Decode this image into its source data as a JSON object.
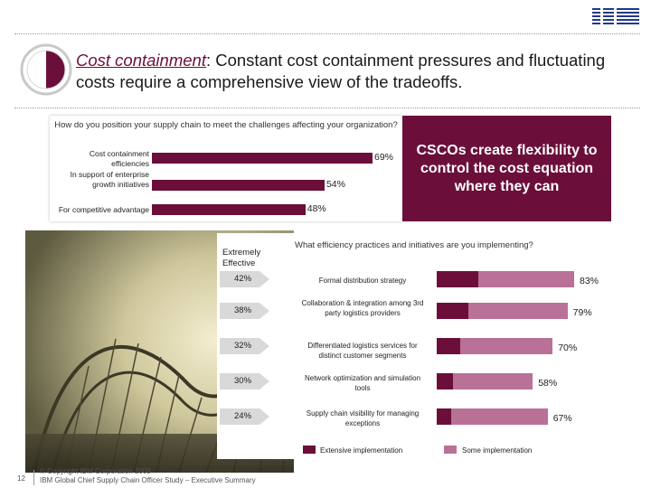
{
  "header": {
    "logo_text": "IBM",
    "title_lead": "Cost containment",
    "title_rest": ":  Constant cost containment pressures and fluctuating costs require a comprehensive view of the tradeoffs."
  },
  "callout": {
    "text": "CSCOs create flexibility to control the cost equation where they can"
  },
  "colors": {
    "maroon": "#6b0f3a",
    "mauve": "#b97197"
  },
  "chart_data": [
    {
      "type": "bar",
      "orientation": "horizontal",
      "title": "How do you position your supply chain to meet the challenges affecting your organization?",
      "categories": [
        "Cost containment efficiencies",
        "In support of enterprise growth initiatives",
        "For competitive advantage"
      ],
      "values": [
        69,
        54,
        48
      ],
      "value_labels": [
        "69%",
        "54%",
        "48%"
      ],
      "unit": "%",
      "xlim": [
        0,
        100
      ],
      "color": "#6b0f3a"
    },
    {
      "type": "bar",
      "orientation": "horizontal",
      "stacked": true,
      "title": "What efficiency practices and initiatives are you implementing?",
      "left_label": "Extremely Effective",
      "categories": [
        "Formal distribution strategy",
        "Collaboration & integration among 3rd party logistics providers",
        "Differentiated logistics services for distinct customer segments",
        "Network optimization and simulation tools",
        "Supply chain visibility for managing exceptions"
      ],
      "extremely_effective": [
        42,
        38,
        32,
        30,
        24
      ],
      "extremely_effective_labels": [
        "42%",
        "38%",
        "32%",
        "30%",
        "24%"
      ],
      "series": [
        {
          "name": "Extensive implementation",
          "values": [
            25,
            19,
            14,
            10,
            9
          ],
          "color": "#6b0f3a"
        },
        {
          "name": "Some implementation",
          "values": [
            58,
            60,
            56,
            48,
            58
          ],
          "color": "#b97197"
        }
      ],
      "totals": [
        83,
        79,
        70,
        58,
        67
      ],
      "total_labels": [
        "83%",
        "79%",
        "70%",
        "58%",
        "67%"
      ],
      "xlim": [
        0,
        100
      ],
      "legend": "bottom"
    }
  ],
  "footer": {
    "page_number": "12",
    "copyright": "© Copyright IBM Corporation 2009",
    "study": "IBM Global Chief Supply Chain Officer Study – Executive Summary"
  }
}
